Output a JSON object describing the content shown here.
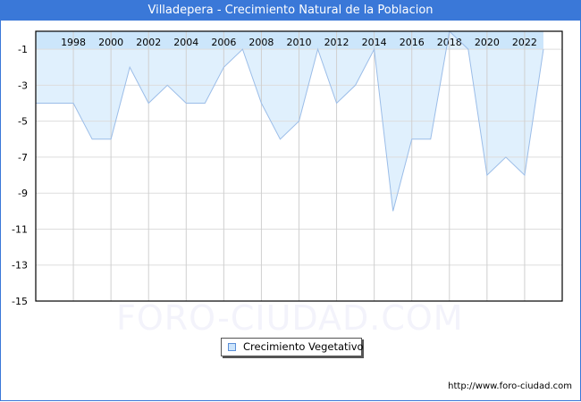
{
  "header": {
    "title": "Villadepera - Crecimiento Natural de la Poblacion"
  },
  "legend": {
    "label": "Crecimiento Vegetativo",
    "swatch_color": "#cce4fb"
  },
  "footer": {
    "url": "http://www.foro-ciudad.com"
  },
  "watermark": {
    "text": "FORO-CIUDAD.COM"
  },
  "colors": {
    "title_bar": "#3a78d8",
    "fill": "#e0f0fd",
    "line": "#9bbde8",
    "top_band": "#cce6fb",
    "grid": "#d0d0d0"
  },
  "chart_data": {
    "type": "area",
    "title": "Villadepera - Crecimiento Natural de la Poblacion",
    "xlabel": "",
    "ylabel": "",
    "x": [
      1996,
      1997,
      1998,
      1999,
      2000,
      2001,
      2002,
      2003,
      2004,
      2005,
      2006,
      2007,
      2008,
      2009,
      2010,
      2011,
      2012,
      2013,
      2014,
      2015,
      2016,
      2017,
      2018,
      2019,
      2020,
      2021,
      2022,
      2023
    ],
    "series": [
      {
        "name": "Crecimiento Vegetativo",
        "values": [
          -4,
          -4,
          -4,
          -6,
          -6,
          -2,
          -4,
          -3,
          -4,
          -4,
          -2,
          -1,
          -4,
          -6,
          -5,
          -1,
          -4,
          -3,
          -1,
          -10,
          -6,
          -6,
          0,
          -1,
          -8,
          -7,
          -8,
          -1
        ]
      }
    ],
    "x_tick_labels": [
      "1998",
      "2000",
      "2002",
      "2004",
      "2006",
      "2008",
      "2010",
      "2012",
      "2014",
      "2016",
      "2018",
      "2020",
      "2022"
    ],
    "y_tick_labels": [
      "-1",
      "-3",
      "-5",
      "-7",
      "-9",
      "-11",
      "-13",
      "-15"
    ],
    "ylim": [
      -15,
      0
    ],
    "xlim": [
      1996,
      2024
    ],
    "grid": true,
    "legend_position": "bottom-center"
  }
}
